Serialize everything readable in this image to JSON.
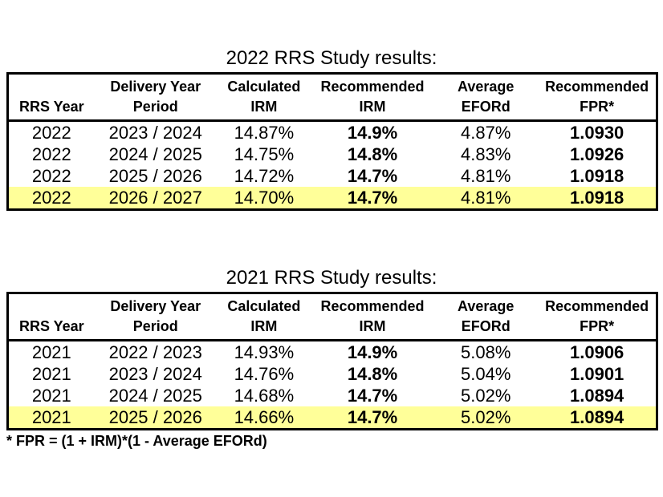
{
  "colors": {
    "background": "#FFFFFF",
    "text": "#000000",
    "border": "#000000",
    "highlight_row": "#FFFF99"
  },
  "footnote": "* FPR = (1 + IRM)*(1 - Average EFORd)",
  "tables": [
    {
      "title": "2022 RRS Study results:",
      "columns": [
        {
          "line1": "",
          "line2": "RRS Year"
        },
        {
          "line1": "Delivery Year",
          "line2": "Period"
        },
        {
          "line1": "Calculated",
          "line2": "IRM"
        },
        {
          "line1": "Recommended",
          "line2": "IRM"
        },
        {
          "line1": "Average",
          "line2": "EFORd"
        },
        {
          "line1": "Recommended",
          "line2": "FPR*"
        }
      ],
      "rows": [
        {
          "highlighted": false,
          "cells": [
            "2022",
            "2023 / 2024",
            "14.87%",
            "14.9%",
            "4.87%",
            "1.0930"
          ]
        },
        {
          "highlighted": false,
          "cells": [
            "2022",
            "2024 / 2025",
            "14.75%",
            "14.8%",
            "4.83%",
            "1.0926"
          ]
        },
        {
          "highlighted": false,
          "cells": [
            "2022",
            "2025 / 2026",
            "14.72%",
            "14.7%",
            "4.81%",
            "1.0918"
          ]
        },
        {
          "highlighted": true,
          "cells": [
            "2022",
            "2026 / 2027",
            "14.70%",
            "14.7%",
            "4.81%",
            "1.0918"
          ]
        }
      ]
    },
    {
      "title": "2021 RRS Study results:",
      "columns": [
        {
          "line1": "",
          "line2": "RRS Year"
        },
        {
          "line1": "Delivery Year",
          "line2": "Period"
        },
        {
          "line1": "Calculated",
          "line2": "IRM"
        },
        {
          "line1": "Recommended",
          "line2": "IRM"
        },
        {
          "line1": "Average",
          "line2": "EFORd"
        },
        {
          "line1": "Recommended",
          "line2": "FPR*"
        }
      ],
      "rows": [
        {
          "highlighted": false,
          "cells": [
            "2021",
            "2022 / 2023",
            "14.93%",
            "14.9%",
            "5.08%",
            "1.0906"
          ]
        },
        {
          "highlighted": false,
          "cells": [
            "2021",
            "2023 / 2024",
            "14.76%",
            "14.8%",
            "5.04%",
            "1.0901"
          ]
        },
        {
          "highlighted": false,
          "cells": [
            "2021",
            "2024 / 2025",
            "14.68%",
            "14.7%",
            "5.02%",
            "1.0894"
          ]
        },
        {
          "highlighted": true,
          "cells": [
            "2021",
            "2025 / 2026",
            "14.66%",
            "14.7%",
            "5.02%",
            "1.0894"
          ]
        }
      ]
    }
  ]
}
